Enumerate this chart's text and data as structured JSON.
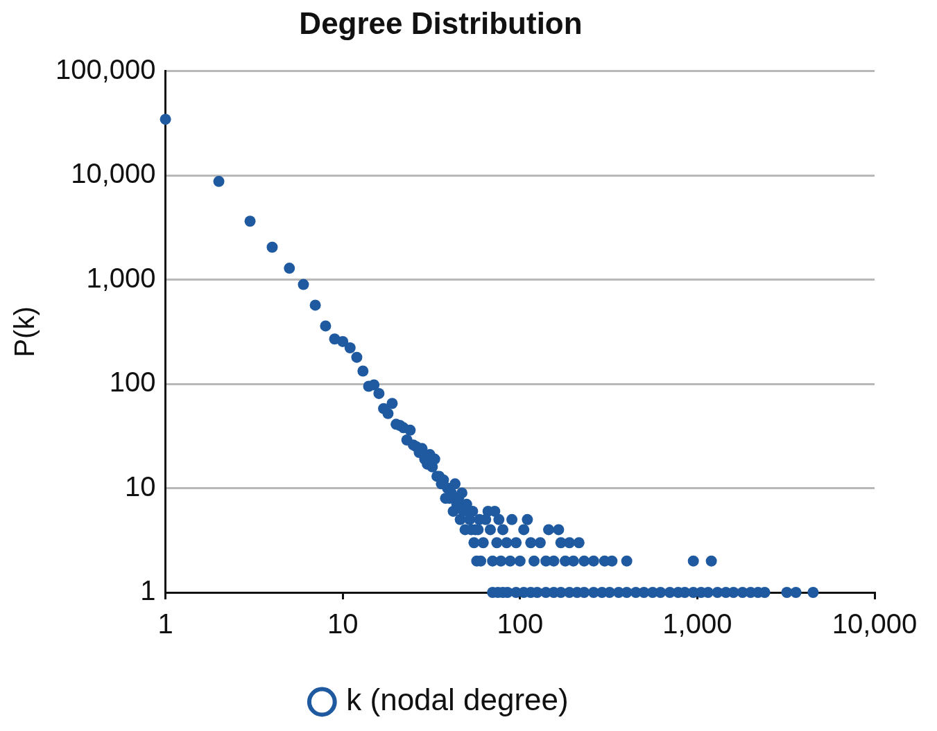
{
  "chart_data": {
    "type": "scatter",
    "title": "Degree Distribution",
    "xlabel": null,
    "ylabel": "P(k)",
    "log": "xy",
    "grid": "y",
    "legend": "bottom",
    "marker": "circle",
    "xlim": [
      1,
      10000
    ],
    "ylim": [
      1,
      100000
    ],
    "xticks": [
      1,
      10,
      100,
      {
        "value": 1000,
        "label": "1,000"
      },
      {
        "value": 10000,
        "label": "10,000"
      }
    ],
    "yticks": [
      1,
      10,
      100,
      {
        "value": 1000,
        "label": "1,000"
      },
      {
        "value": 10000,
        "label": "10,000"
      },
      {
        "value": 100000,
        "label": "100,000"
      }
    ],
    "series": [
      {
        "name": "k (nodal degree)",
        "color": "#1f5aa0",
        "x": [
          1,
          2,
          3,
          4,
          5,
          6,
          7,
          8,
          9,
          10,
          11,
          12,
          13,
          14,
          15,
          16,
          17,
          18,
          19,
          20,
          21,
          22,
          23,
          24,
          25,
          26,
          27,
          28,
          29,
          30,
          31,
          32,
          33,
          34,
          35,
          36,
          37,
          38,
          39,
          40,
          41,
          42,
          43,
          44,
          45,
          46,
          47,
          48,
          49,
          50,
          52,
          53,
          54,
          55,
          56,
          57,
          58,
          59,
          60,
          62,
          64,
          66,
          68,
          70,
          72,
          74,
          76,
          78,
          80,
          84,
          88,
          90,
          95,
          100,
          105,
          110,
          115,
          120,
          130,
          140,
          145,
          155,
          165,
          170,
          180,
          190,
          200,
          215,
          230,
          260,
          300,
          330,
          400,
          950,
          1200,
          70,
          75,
          80,
          85,
          95,
          105,
          115,
          125,
          140,
          155,
          170,
          190,
          210,
          230,
          260,
          290,
          320,
          360,
          400,
          450,
          500,
          560,
          620,
          700,
          780,
          850,
          950,
          1050,
          1150,
          1300,
          1450,
          1600,
          1800,
          2000,
          2200,
          2400,
          3200,
          3600,
          4500
        ],
        "values": [
          34600,
          8770,
          3640,
          2050,
          1290,
          900,
          570,
          360,
          270,
          255,
          222,
          180,
          133,
          95,
          98,
          81,
          58,
          52,
          65,
          41,
          40,
          38,
          29,
          36,
          26,
          25,
          22,
          24,
          19,
          17,
          21,
          16,
          19,
          13,
          13,
          11,
          12,
          8,
          10,
          8,
          9,
          6,
          11,
          7,
          8,
          5,
          9,
          6,
          4,
          7,
          5,
          4,
          6,
          3,
          4,
          2,
          4,
          5,
          2,
          3,
          5,
          6,
          4,
          2,
          6,
          3,
          5,
          2,
          4,
          3,
          2,
          5,
          3,
          2,
          4,
          5,
          3,
          2,
          3,
          2,
          4,
          2,
          4,
          3,
          2,
          3,
          2,
          3,
          2,
          2,
          2,
          2,
          2,
          2,
          2,
          1,
          1,
          1,
          1,
          1,
          1,
          1,
          1,
          1,
          1,
          1,
          1,
          1,
          1,
          1,
          1,
          1,
          1,
          1,
          1,
          1,
          1,
          1,
          1,
          1,
          1,
          1,
          1,
          1,
          1,
          1,
          1,
          1,
          1,
          1,
          1,
          1,
          1,
          1
        ]
      }
    ]
  }
}
